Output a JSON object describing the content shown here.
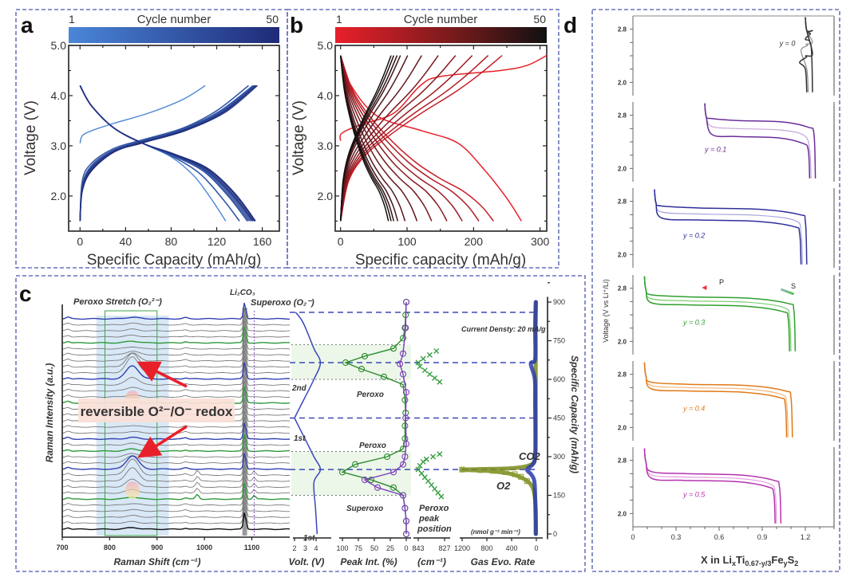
{
  "figure": {
    "panel_labels": [
      "a",
      "b",
      "c",
      "d"
    ]
  },
  "chart_data": [
    {
      "id": "a",
      "type": "line",
      "title": "",
      "xlabel": "Specific Capacity (mAh/g)",
      "ylabel": "Voltage (V)",
      "xlim": [
        -10,
        175
      ],
      "ylim": [
        1.3,
        5.0
      ],
      "xticks": [
        0,
        40,
        80,
        120,
        160
      ],
      "xtick_labels": [
        "0",
        "40",
        "80",
        "120",
        "160"
      ],
      "yticks": [
        2.0,
        3.0,
        4.0,
        5.0
      ],
      "ytick_labels": [
        "2.0",
        "3.0",
        "4.0",
        "5.0"
      ],
      "colorbar": {
        "label": "Cycle number",
        "min_label": "1",
        "max_label": "50",
        "color_start": "#4a86d8",
        "color_end": "#1f2a78"
      },
      "series": [
        {
          "name": "cycle 1 charge",
          "kind": "charge",
          "cycle_frac": 0.0,
          "x": [
            0,
            2,
            10,
            30,
            60,
            90,
            110
          ],
          "y": [
            3.05,
            3.2,
            3.3,
            3.45,
            3.65,
            3.92,
            4.2
          ]
        },
        {
          "name": "cycle 1 discharge",
          "kind": "discharge",
          "cycle_frac": 0.0,
          "x": [
            0,
            10,
            30,
            55,
            80,
            100,
            115,
            128
          ],
          "y": [
            4.2,
            3.8,
            3.35,
            3.05,
            2.78,
            2.4,
            1.95,
            1.5
          ]
        },
        {
          "name": "cycle n charge",
          "kind": "charge",
          "cycle_frac": 0.25,
          "x": [
            0,
            2,
            10,
            30,
            55,
            90,
            120,
            148
          ],
          "y": [
            1.5,
            2.3,
            2.65,
            2.95,
            3.12,
            3.35,
            3.7,
            4.2
          ]
        },
        {
          "name": "cycle n discharge",
          "kind": "discharge",
          "cycle_frac": 0.25,
          "x": [
            0,
            10,
            30,
            55,
            80,
            105,
            125,
            140
          ],
          "y": [
            4.2,
            3.8,
            3.35,
            3.05,
            2.8,
            2.45,
            1.95,
            1.5
          ]
        },
        {
          "name": "cycle n charge",
          "kind": "charge",
          "cycle_frac": 0.5,
          "x": [
            0,
            2,
            10,
            30,
            55,
            90,
            122,
            152
          ],
          "y": [
            1.5,
            2.2,
            2.6,
            2.92,
            3.1,
            3.33,
            3.68,
            4.2
          ]
        },
        {
          "name": "cycle n discharge",
          "kind": "discharge",
          "cycle_frac": 0.5,
          "x": [
            0,
            10,
            30,
            55,
            80,
            108,
            130,
            147
          ],
          "y": [
            4.2,
            3.8,
            3.35,
            3.05,
            2.82,
            2.5,
            2.0,
            1.5
          ]
        },
        {
          "name": "cycle n charge",
          "kind": "charge",
          "cycle_frac": 0.75,
          "x": [
            0,
            2,
            10,
            30,
            55,
            92,
            124,
            155
          ],
          "y": [
            1.5,
            2.15,
            2.55,
            2.9,
            3.08,
            3.32,
            3.66,
            4.2
          ]
        },
        {
          "name": "cycle n discharge",
          "kind": "discharge",
          "cycle_frac": 0.75,
          "x": [
            0,
            10,
            30,
            55,
            82,
            110,
            134,
            152
          ],
          "y": [
            4.2,
            3.8,
            3.35,
            3.05,
            2.83,
            2.52,
            2.02,
            1.5
          ]
        },
        {
          "name": "cycle 50 charge",
          "kind": "charge",
          "cycle_frac": 1.0,
          "x": [
            0,
            2,
            10,
            30,
            55,
            92,
            125,
            154
          ],
          "y": [
            1.5,
            2.1,
            2.5,
            2.88,
            3.06,
            3.3,
            3.65,
            4.2
          ]
        },
        {
          "name": "cycle 50 discharge",
          "kind": "discharge",
          "cycle_frac": 1.0,
          "x": [
            0,
            10,
            30,
            55,
            82,
            112,
            136,
            154
          ],
          "y": [
            4.2,
            3.8,
            3.35,
            3.05,
            2.84,
            2.55,
            2.05,
            1.5
          ]
        }
      ]
    },
    {
      "id": "b",
      "type": "line",
      "title": "",
      "xlabel": "Specific capacity (mAh/g)",
      "ylabel": "Voltage (V)",
      "xlim": [
        -8,
        310
      ],
      "ylim": [
        1.3,
        5.0
      ],
      "xticks": [
        0,
        100,
        200,
        300
      ],
      "xtick_labels": [
        "0",
        "100",
        "200",
        "300"
      ],
      "yticks": [
        2.0,
        3.0,
        4.0,
        5.0
      ],
      "ytick_labels": [
        "2.0",
        "3.0",
        "4.0",
        "5.0"
      ],
      "colorbar": {
        "label": "Cycle number",
        "min_label": "1",
        "max_label": "50",
        "color_start": "#e8202a",
        "color_end": "#111111"
      },
      "discharge_end_capacities": [
        272,
        230,
        208,
        183,
        160,
        137,
        115,
        97,
        86,
        80,
        76,
        72
      ],
      "charge_end_capacities": [
        310,
        243,
        222,
        198,
        173,
        147,
        122,
        101,
        90,
        85,
        80,
        76
      ],
      "voltage_window": [
        1.5,
        4.8
      ]
    },
    {
      "id": "c",
      "type": "line",
      "subplots": [
        {
          "name": "raman",
          "xlabel": "Raman Shift (cm⁻¹)",
          "ylabel": "Raman Intensity (a.u.)",
          "xlim": [
            700,
            1180
          ],
          "xticks": [
            700,
            800,
            900,
            1000,
            1100
          ],
          "xtick_labels": [
            "700",
            "800",
            "900",
            "1000",
            "1100"
          ],
          "n_spectra": 36,
          "peaks": [
            {
              "center": 848,
              "label": "Peroxo Stretch (O₂²⁻)"
            },
            {
              "center": 1085,
              "label": "Li₂CO₃"
            },
            {
              "center": 1105,
              "label": "Superoxo (O₂⁻)"
            }
          ],
          "highlighted_spectra": {
            "blue": [
              0,
              10,
              20,
              25
            ],
            "green": [
              4,
              14,
              22,
              30
            ],
            "black": [
              35
            ]
          },
          "annotation": "reversible O²⁻/O⁻ redox"
        },
        {
          "name": "voltage",
          "xlabel": "Volt. (V)",
          "xticks": [
            2,
            3,
            4
          ],
          "xtick_labels": [
            "2",
            "3",
            "4"
          ],
          "cycle_labels": [
            "1st",
            "2nd"
          ]
        },
        {
          "name": "peak_intensity",
          "xlabel": "Peak Int. (%)",
          "xticks": [
            100,
            75,
            50,
            25,
            0
          ],
          "xtick_labels": [
            "100",
            "75",
            "50",
            "25",
            "0"
          ],
          "series": [
            {
              "name": "Peroxo",
              "color": "#2e8b2e",
              "capacity": [
                0,
                50,
                100,
                150,
                180,
                210,
                240,
                270,
                300,
                330,
                370,
                420,
                470,
                520,
                580,
                610,
                640,
                665,
                690,
                720,
                760,
                800,
                850,
                900
              ],
              "value": [
                0,
                0,
                2,
                5,
                20,
                55,
                100,
                80,
                30,
                5,
                2,
                2,
                1,
                2,
                5,
                35,
                70,
                95,
                65,
                20,
                5,
                2,
                1,
                0
              ]
            },
            {
              "name": "Superoxo",
              "color": "#7b3fb8",
              "capacity": [
                0,
                50,
                100,
                150,
                180,
                210,
                240,
                270,
                300,
                350,
                450,
                550,
                620,
                660,
                700,
                800,
                900
              ],
              "value": [
                0,
                0,
                2,
                5,
                45,
                65,
                20,
                5,
                2,
                0,
                1,
                0,
                5,
                10,
                5,
                1,
                0
              ]
            }
          ]
        },
        {
          "name": "peroxo_peak_position",
          "xlabel": "(cm⁻¹)",
          "xticks": [
            843,
            827
          ],
          "xtick_labels": [
            "843",
            "827"
          ],
          "label": "Peroxo peak position",
          "series": [
            {
              "name": "cycle1",
              "capacity": [
                145,
                160,
                175,
                190,
                205,
                220,
                235,
                250,
                265,
                280,
                290,
                300,
                310
              ],
              "value": [
                829,
                831,
                833,
                835,
                837,
                839,
                841,
                843,
                842,
                840,
                838,
                834,
                830
              ]
            },
            {
              "name": "cycle2",
              "capacity": [
                590,
                605,
                620,
                635,
                650,
                665,
                680,
                695,
                710
              ],
              "value": [
                830,
                833,
                836,
                839,
                842,
                843,
                840,
                836,
                832
              ]
            }
          ]
        },
        {
          "name": "gas_evolution",
          "xlabel": "Gas Evo. Rate",
          "unit_label": "(nmol g⁻¹ min⁻¹)",
          "xticks": [
            1200,
            800,
            400,
            0
          ],
          "xtick_labels": [
            "1200",
            "800",
            "400",
            "0"
          ],
          "ylabel": "Specific Capacity (mAh/g)",
          "yticks": [
            0,
            150,
            300,
            450,
            600,
            750,
            900
          ],
          "ytick_labels": [
            "0",
            "150",
            "300",
            "450",
            "600",
            "750",
            "900"
          ],
          "ylim": [
            -20,
            920
          ],
          "note": "Current Densty: 20 mA/g",
          "series": [
            {
              "name": "CO2",
              "color": "#2b3aa8",
              "capacity": [
                0,
                100,
                200,
                230,
                250,
                270,
                300,
                400,
                500,
                600,
                660,
                670,
                700,
                800,
                900
              ],
              "value": [
                10,
                15,
                30,
                80,
                150,
                60,
                20,
                15,
                20,
                25,
                90,
                30,
                15,
                20,
                10
              ]
            },
            {
              "name": "O2",
              "color": "#7a8a1a",
              "capacity": [
                0,
                100,
                150,
                180,
                200,
                220,
                235,
                245,
                250,
                255,
                270,
                300,
                400,
                600,
                800,
                900
              ],
              "value": [
                5,
                10,
                30,
                60,
                120,
                250,
                450,
                800,
                1200,
                400,
                80,
                20,
                10,
                10,
                10,
                5
              ]
            }
          ],
          "dashed_capacity_markers": [
            250,
            450,
            665,
            860
          ],
          "dotted_capacity_markers": [
            150,
            320,
            600,
            735
          ]
        }
      ]
    },
    {
      "id": "d",
      "type": "line",
      "xlabel": "X in LiₓTi₀.₆₇₋ᵧ/₃FeᵧS₂",
      "xlabel_parts": {
        "base": "X in Li",
        "x_sub": "x",
        "ti": "Ti",
        "ti_sub": "0.67-y/3",
        "fe": "Fe",
        "fe_sub": "y",
        "s": "S",
        "s_sub": "2"
      },
      "ylabel": "Voltage (V vs Li⁺/Li)",
      "xlim": [
        0,
        1.4
      ],
      "xticks": [
        0,
        0.3,
        0.6,
        0.9,
        1.2
      ],
      "xtick_labels": [
        "0",
        "0.3",
        "0.6",
        "0.9",
        "1.2"
      ],
      "ylim": [
        1.8,
        3.0
      ],
      "yticks": [
        2.0,
        2.8
      ],
      "ytick_labels": [
        "2.0",
        "2.8"
      ],
      "arrows": [
        {
          "label": "P",
          "direction": "left"
        },
        {
          "label": "S",
          "direction": "left"
        }
      ],
      "subplots": [
        {
          "label": "y = 0",
          "color": "#333333",
          "light": "#8a8a8a",
          "x_start": 1.2,
          "x_end": 1.25,
          "plateau_hi": 2.75,
          "plateau_lo": 2.4
        },
        {
          "label": "y = 0.1",
          "color": "#6a2e9a",
          "light": "#c7a3dc",
          "x_start": 0.5,
          "x_end": 1.27,
          "plateau_hi": 2.72,
          "plateau_lo": 2.48
        },
        {
          "label": "y = 0.2",
          "color": "#2f2f9a",
          "light": "#a7a7dd",
          "x_start": 0.15,
          "x_end": 1.21,
          "plateau_hi": 2.7,
          "plateau_lo": 2.52
        },
        {
          "label": "y = 0.3",
          "color": "#2fa02f",
          "light": "#7ccf6f",
          "x_start": 0.08,
          "x_end": 1.13,
          "plateau_hi": 2.67,
          "plateau_lo": 2.55
        },
        {
          "label": "y = 0.4",
          "color": "#e07a18",
          "light": "#f2b67a",
          "x_start": 0.08,
          "x_end": 1.11,
          "plateau_hi": 2.65,
          "plateau_lo": 2.55
        },
        {
          "label": "y = 0.5",
          "color": "#b532b0",
          "light": "#e39de0",
          "x_start": 0.08,
          "x_end": 1.03,
          "plateau_hi": 2.6,
          "plateau_lo": 2.5
        }
      ]
    }
  ]
}
